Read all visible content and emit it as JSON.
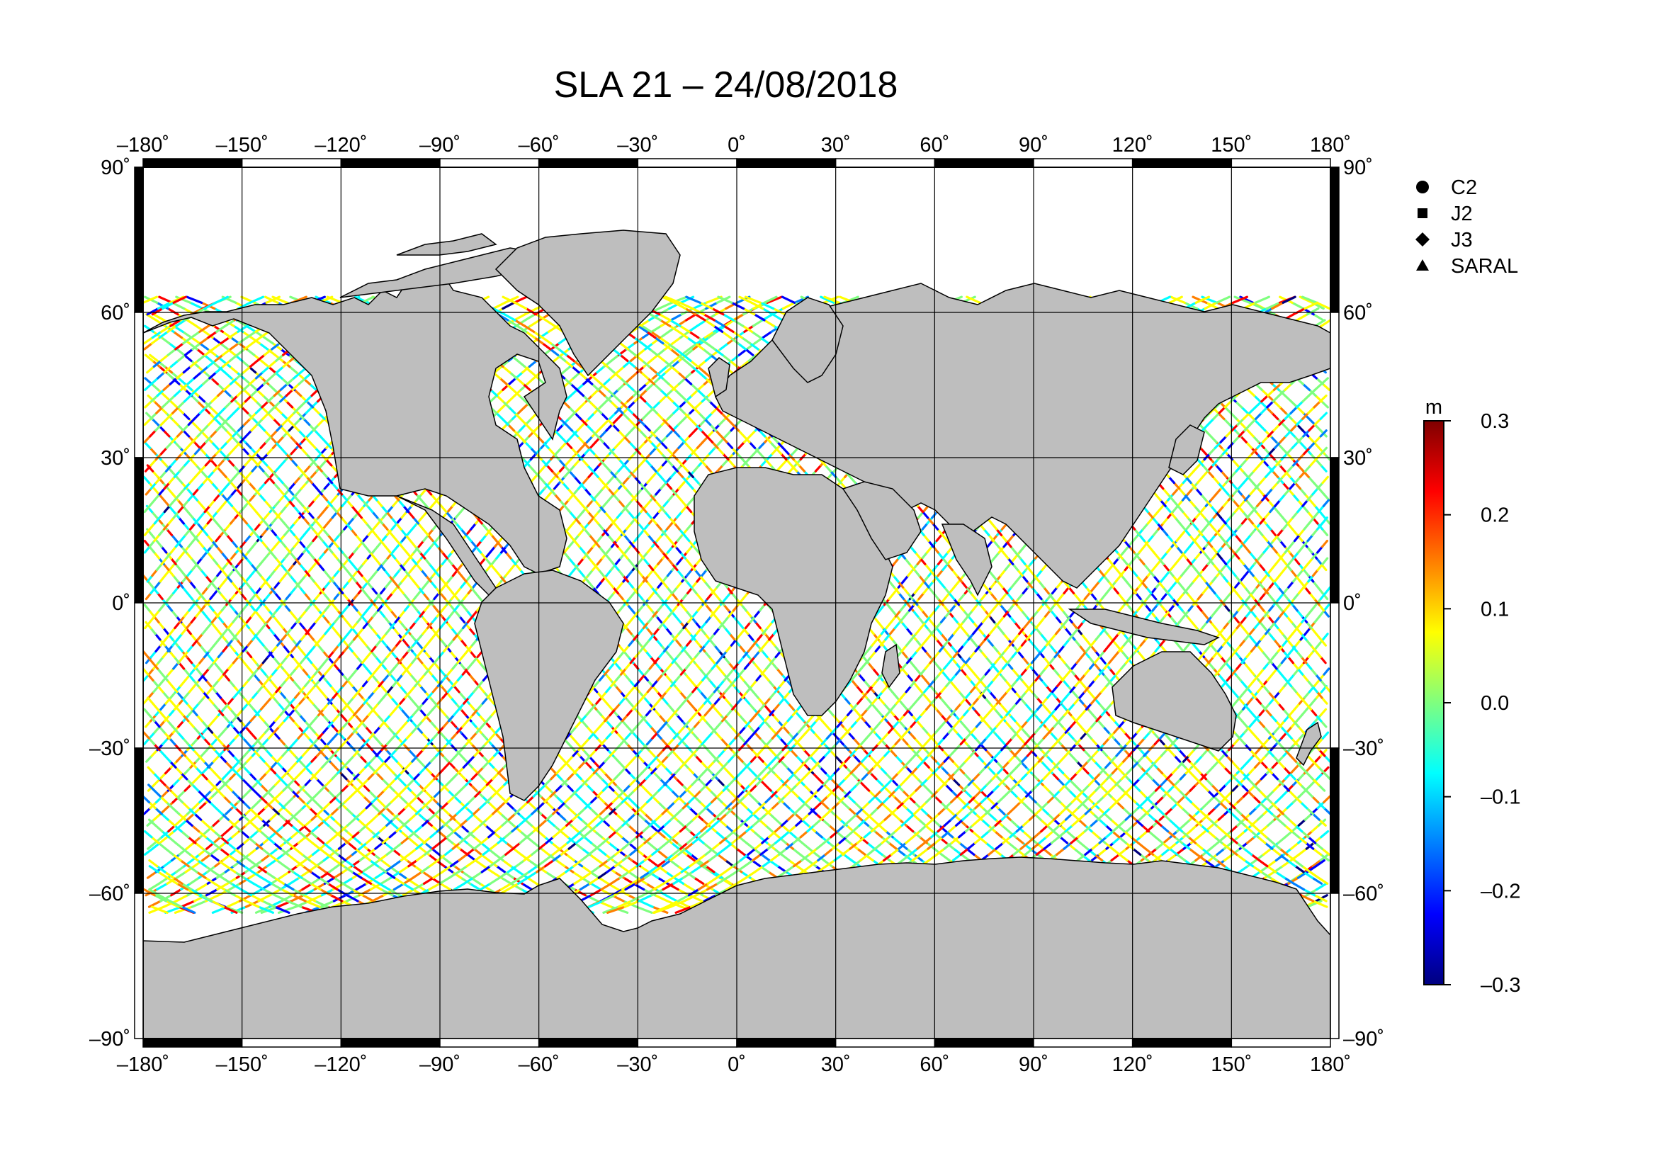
{
  "title": "SLA 21 – 24/08/2018",
  "lon_ticks": [
    "–180˚",
    "–150˚",
    "–120˚",
    "–90˚",
    "–60˚",
    "–30˚",
    "0˚",
    "30˚",
    "60˚",
    "90˚",
    "120˚",
    "150˚",
    "180˚"
  ],
  "lat_ticks": [
    "90˚",
    "60˚",
    "30˚",
    "0˚",
    "–30˚",
    "–60˚",
    "–90˚"
  ],
  "lon_values": [
    -180,
    -150,
    -120,
    -90,
    -60,
    -30,
    0,
    30,
    60,
    90,
    120,
    150,
    180
  ],
  "lat_values": [
    90,
    60,
    30,
    0,
    -30,
    -60,
    -90
  ],
  "legend": [
    {
      "symbol": "circle",
      "label": "C2"
    },
    {
      "symbol": "square",
      "label": "J2"
    },
    {
      "symbol": "diamond",
      "label": "J3"
    },
    {
      "symbol": "triangle",
      "label": "SARAL"
    }
  ],
  "colorbar": {
    "unit": "m",
    "min": -0.3,
    "max": 0.3,
    "tick_labels": [
      "0.3",
      "0.2",
      "0.1",
      "0.0",
      "–0.1",
      "–0.2",
      "–0.3"
    ],
    "colors": [
      "#00007f",
      "#0000ff",
      "#007fff",
      "#00ffff",
      "#7fff7f",
      "#ffff00",
      "#ff7f00",
      "#ff0000",
      "#7f0000"
    ]
  },
  "map": {
    "land_color": "#bebebe",
    "ocean_color": "#ffffff",
    "grid_spacing_deg": 30,
    "projection": "equirectangular"
  }
}
